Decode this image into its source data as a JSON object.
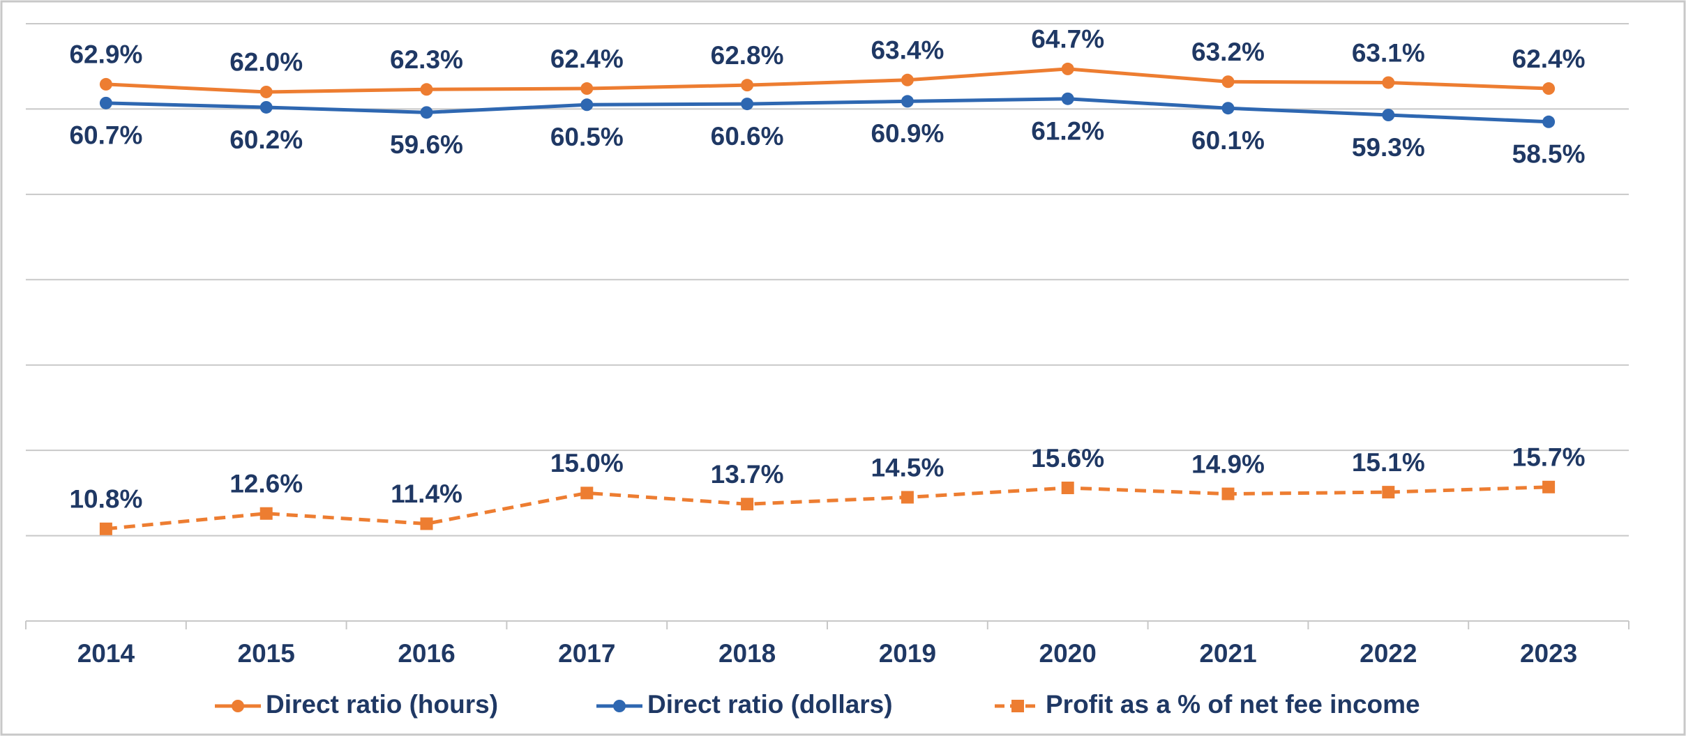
{
  "chart_data": {
    "type": "line",
    "categories": [
      "2014",
      "2015",
      "2016",
      "2017",
      "2018",
      "2019",
      "2020",
      "2021",
      "2022",
      "2023"
    ],
    "series": [
      {
        "name": "Direct ratio (hours)",
        "color": "#ed7d31",
        "dash": false,
        "marker": "circle",
        "label_position": "above",
        "values": [
          62.9,
          62.0,
          62.3,
          62.4,
          62.8,
          63.4,
          64.7,
          63.2,
          63.1,
          62.4
        ],
        "value_labels": [
          "62.9%",
          "62.0%",
          "62.3%",
          "62.4%",
          "62.8%",
          "63.4%",
          "64.7%",
          "63.2%",
          "63.1%",
          "62.4%"
        ]
      },
      {
        "name": "Direct ratio (dollars)",
        "color": "#2e67b1",
        "dash": false,
        "marker": "circle",
        "label_position": "below",
        "values": [
          60.7,
          60.2,
          59.6,
          60.5,
          60.6,
          60.9,
          61.2,
          60.1,
          59.3,
          58.5
        ],
        "value_labels": [
          "60.7%",
          "60.2%",
          "59.6%",
          "60.5%",
          "60.6%",
          "60.9%",
          "61.2%",
          "60.1%",
          "59.3%",
          "58.5%"
        ]
      },
      {
        "name": "Profit as a % of net fee income",
        "color": "#ed7d31",
        "dash": true,
        "marker": "square",
        "label_position": "above",
        "values": [
          10.8,
          12.6,
          11.4,
          15.0,
          13.7,
          14.5,
          15.6,
          14.9,
          15.1,
          15.7
        ],
        "value_labels": [
          "10.8%",
          "12.6%",
          "11.4%",
          "15.0%",
          "13.7%",
          "14.5%",
          "15.6%",
          "14.9%",
          "15.1%",
          "15.7%"
        ]
      }
    ],
    "ylim": [
      0,
      70
    ],
    "yticks": [
      0,
      10,
      20,
      30,
      40,
      50,
      60,
      70
    ],
    "grid": true,
    "legend": "bottom"
  }
}
